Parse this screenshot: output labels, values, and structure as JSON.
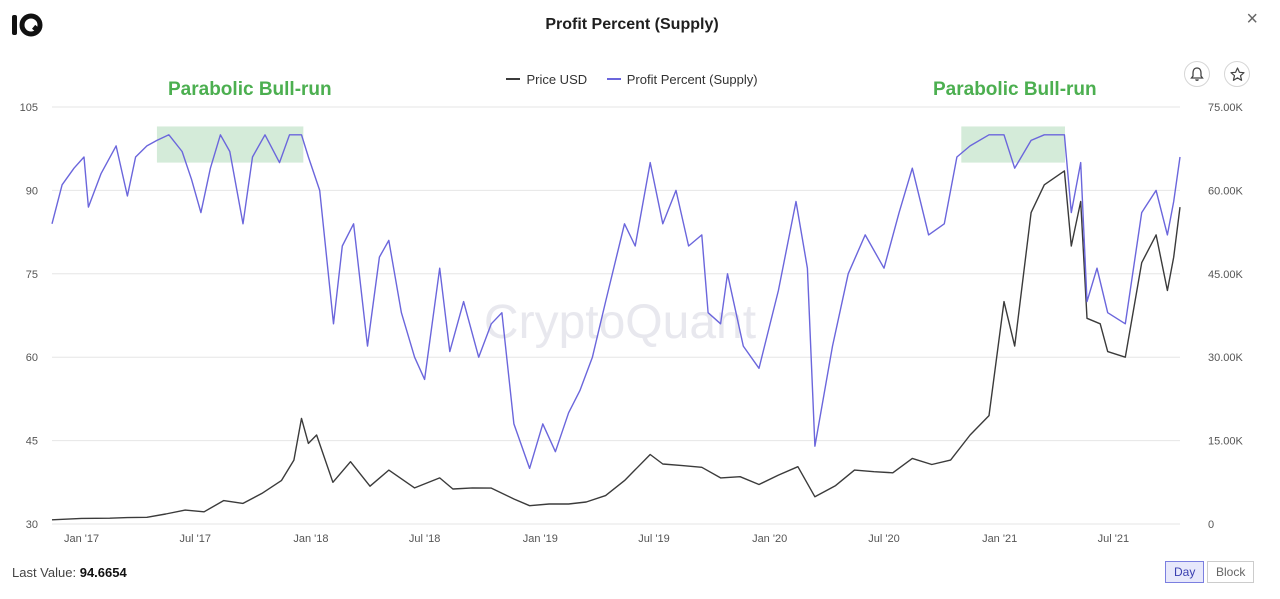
{
  "header": {
    "title": "Profit Percent (Supply)",
    "close_symbol": "×"
  },
  "icons": {
    "logo": "cryptoquant-logo",
    "close": "close-icon",
    "bell": "bell-icon",
    "star": "star-icon"
  },
  "colors": {
    "price": "#3b3b3b",
    "profit": "#6b66dc",
    "highlight": "#cfe9d5",
    "annotation": "#4caf50"
  },
  "watermark": "CryptoQuant",
  "footer": {
    "last_value_label": "Last Value:",
    "last_value": "94.6654",
    "day_label": "Day",
    "block_label": "Block",
    "active": "Day"
  },
  "chart_data": {
    "type": "line",
    "title": "Profit Percent (Supply)",
    "legend_position": "top-center",
    "grid": true,
    "x_tick_labels": [
      "Jan '17",
      "Jul '17",
      "Jan '18",
      "Jul '18",
      "Jan '19",
      "Jul '19",
      "Jan '20",
      "Jul '20",
      "Jan '21",
      "Jul '21"
    ],
    "x_tick_dates": [
      "2017-01-01",
      "2017-07-01",
      "2018-01-01",
      "2018-07-01",
      "2019-01-01",
      "2019-07-01",
      "2020-01-01",
      "2020-07-01",
      "2021-01-01",
      "2021-07-01"
    ],
    "x_range": [
      "2016-11-15",
      "2021-10-15"
    ],
    "y_left": {
      "ticks": [
        "30",
        "45",
        "60",
        "75",
        "90",
        "105"
      ],
      "range": [
        30,
        105
      ]
    },
    "y_right": {
      "ticks": [
        "0",
        "15.00K",
        "30.00K",
        "45.00K",
        "60.00K",
        "75.00K"
      ],
      "range": [
        0,
        75000
      ]
    },
    "annotations": [
      {
        "text": "Parabolic Bull-run",
        "x_start": "2017-05-01",
        "x_end": "2017-12-20"
      },
      {
        "text": "Parabolic Bull-run",
        "x_start": "2020-11-01",
        "x_end": "2021-04-15"
      }
    ],
    "series": [
      {
        "name": "Price USD",
        "axis": "right",
        "points": [
          [
            "2016-11-15",
            750
          ],
          [
            "2017-01-01",
            1000
          ],
          [
            "2017-02-15",
            1050
          ],
          [
            "2017-03-15",
            1150
          ],
          [
            "2017-04-15",
            1200
          ],
          [
            "2017-05-15",
            1800
          ],
          [
            "2017-06-15",
            2500
          ],
          [
            "2017-07-15",
            2200
          ],
          [
            "2017-08-15",
            4200
          ],
          [
            "2017-09-15",
            3700
          ],
          [
            "2017-10-15",
            5500
          ],
          [
            "2017-11-15",
            7800
          ],
          [
            "2017-12-05",
            11500
          ],
          [
            "2017-12-17",
            19000
          ],
          [
            "2017-12-28",
            14500
          ],
          [
            "2018-01-10",
            16000
          ],
          [
            "2018-02-05",
            7500
          ],
          [
            "2018-03-05",
            11200
          ],
          [
            "2018-04-05",
            6800
          ],
          [
            "2018-05-05",
            9700
          ],
          [
            "2018-06-15",
            6500
          ],
          [
            "2018-07-25",
            8300
          ],
          [
            "2018-08-15",
            6300
          ],
          [
            "2018-09-15",
            6500
          ],
          [
            "2018-10-15",
            6450
          ],
          [
            "2018-11-20",
            4500
          ],
          [
            "2018-12-15",
            3300
          ],
          [
            "2019-01-15",
            3600
          ],
          [
            "2019-02-15",
            3600
          ],
          [
            "2019-03-15",
            3950
          ],
          [
            "2019-04-15",
            5100
          ],
          [
            "2019-05-15",
            7800
          ],
          [
            "2019-06-25",
            12500
          ],
          [
            "2019-07-15",
            10800
          ],
          [
            "2019-08-15",
            10500
          ],
          [
            "2019-09-15",
            10200
          ],
          [
            "2019-10-15",
            8300
          ],
          [
            "2019-11-15",
            8500
          ],
          [
            "2019-12-15",
            7100
          ],
          [
            "2020-01-15",
            8800
          ],
          [
            "2020-02-15",
            10300
          ],
          [
            "2020-03-13",
            4900
          ],
          [
            "2020-04-15",
            6900
          ],
          [
            "2020-05-15",
            9700
          ],
          [
            "2020-06-15",
            9400
          ],
          [
            "2020-07-15",
            9200
          ],
          [
            "2020-08-15",
            11800
          ],
          [
            "2020-09-15",
            10700
          ],
          [
            "2020-10-15",
            11500
          ],
          [
            "2020-11-15",
            16000
          ],
          [
            "2020-12-15",
            19500
          ],
          [
            "2021-01-08",
            40000
          ],
          [
            "2021-01-25",
            32000
          ],
          [
            "2021-02-20",
            56000
          ],
          [
            "2021-03-13",
            61000
          ],
          [
            "2021-04-14",
            63500
          ],
          [
            "2021-04-25",
            50000
          ],
          [
            "2021-05-10",
            58000
          ],
          [
            "2021-05-20",
            37000
          ],
          [
            "2021-06-10",
            36000
          ],
          [
            "2021-06-22",
            31000
          ],
          [
            "2021-07-20",
            30000
          ],
          [
            "2021-08-15",
            47000
          ],
          [
            "2021-09-07",
            52000
          ],
          [
            "2021-09-25",
            42000
          ],
          [
            "2021-10-05",
            48000
          ],
          [
            "2021-10-15",
            57000
          ]
        ]
      },
      {
        "name": "Profit Percent (Supply)",
        "axis": "left",
        "points": [
          [
            "2016-11-15",
            84
          ],
          [
            "2016-12-01",
            91
          ],
          [
            "2016-12-20",
            94
          ],
          [
            "2017-01-05",
            96
          ],
          [
            "2017-01-12",
            87
          ],
          [
            "2017-02-01",
            93
          ],
          [
            "2017-02-25",
            98
          ],
          [
            "2017-03-15",
            89
          ],
          [
            "2017-03-28",
            96
          ],
          [
            "2017-04-15",
            98
          ],
          [
            "2017-05-01",
            99
          ],
          [
            "2017-05-20",
            100
          ],
          [
            "2017-06-10",
            97
          ],
          [
            "2017-06-25",
            92
          ],
          [
            "2017-07-10",
            86
          ],
          [
            "2017-07-25",
            94
          ],
          [
            "2017-08-10",
            100
          ],
          [
            "2017-08-25",
            97
          ],
          [
            "2017-09-15",
            84
          ],
          [
            "2017-09-30",
            96
          ],
          [
            "2017-10-20",
            100
          ],
          [
            "2017-11-12",
            95
          ],
          [
            "2017-11-28",
            100
          ],
          [
            "2017-12-17",
            100
          ],
          [
            "2017-12-28",
            96
          ],
          [
            "2018-01-15",
            90
          ],
          [
            "2018-02-06",
            66
          ],
          [
            "2018-02-20",
            80
          ],
          [
            "2018-03-10",
            84
          ],
          [
            "2018-04-01",
            62
          ],
          [
            "2018-04-20",
            78
          ],
          [
            "2018-05-05",
            81
          ],
          [
            "2018-05-25",
            68
          ],
          [
            "2018-06-15",
            60
          ],
          [
            "2018-07-01",
            56
          ],
          [
            "2018-07-25",
            76
          ],
          [
            "2018-08-10",
            61
          ],
          [
            "2018-09-01",
            70
          ],
          [
            "2018-09-25",
            60
          ],
          [
            "2018-10-15",
            66
          ],
          [
            "2018-11-01",
            68
          ],
          [
            "2018-11-20",
            48
          ],
          [
            "2018-12-15",
            40
          ],
          [
            "2019-01-05",
            48
          ],
          [
            "2019-01-25",
            43
          ],
          [
            "2019-02-15",
            50
          ],
          [
            "2019-03-05",
            54
          ],
          [
            "2019-03-25",
            60
          ],
          [
            "2019-04-15",
            70
          ],
          [
            "2019-05-15",
            84
          ],
          [
            "2019-06-01",
            80
          ],
          [
            "2019-06-25",
            95
          ],
          [
            "2019-07-15",
            84
          ],
          [
            "2019-08-05",
            90
          ],
          [
            "2019-08-25",
            80
          ],
          [
            "2019-09-15",
            82
          ],
          [
            "2019-09-25",
            68
          ],
          [
            "2019-10-15",
            66
          ],
          [
            "2019-10-26",
            75
          ],
          [
            "2019-11-20",
            62
          ],
          [
            "2019-12-15",
            58
          ],
          [
            "2020-01-15",
            72
          ],
          [
            "2020-02-12",
            88
          ],
          [
            "2020-03-01",
            76
          ],
          [
            "2020-03-13",
            44
          ],
          [
            "2020-04-10",
            62
          ],
          [
            "2020-05-05",
            75
          ],
          [
            "2020-06-01",
            82
          ],
          [
            "2020-07-01",
            76
          ],
          [
            "2020-07-25",
            86
          ],
          [
            "2020-08-15",
            94
          ],
          [
            "2020-09-10",
            82
          ],
          [
            "2020-10-05",
            84
          ],
          [
            "2020-10-25",
            96
          ],
          [
            "2020-11-15",
            98
          ],
          [
            "2020-12-15",
            100
          ],
          [
            "2021-01-08",
            100
          ],
          [
            "2021-01-25",
            94
          ],
          [
            "2021-02-20",
            99
          ],
          [
            "2021-03-13",
            100
          ],
          [
            "2021-04-14",
            100
          ],
          [
            "2021-04-25",
            86
          ],
          [
            "2021-05-10",
            95
          ],
          [
            "2021-05-20",
            70
          ],
          [
            "2021-06-05",
            76
          ],
          [
            "2021-06-22",
            68
          ],
          [
            "2021-07-20",
            66
          ],
          [
            "2021-08-15",
            86
          ],
          [
            "2021-09-07",
            90
          ],
          [
            "2021-09-25",
            82
          ],
          [
            "2021-10-05",
            88
          ],
          [
            "2021-10-15",
            96
          ]
        ]
      }
    ],
    "last_value": 94.6654
  }
}
